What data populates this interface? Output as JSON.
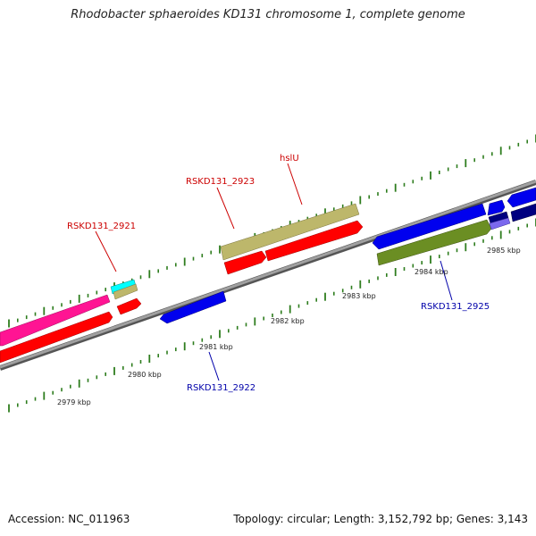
{
  "title": "Rhodobacter sphaeroides KD131 chromosome 1, complete genome",
  "footer": {
    "accession": "Accession: NC_011963",
    "summary": "Topology: circular; Length: 3,152,792 bp; Genes: 3,143"
  },
  "colors": {
    "backbone": "#8c8c8c",
    "tick": "#2e7d1e",
    "label_red": "#cc0000",
    "label_blue": "#0000aa",
    "red": "#ff0000",
    "blue": "#0000ee",
    "khaki": "#bdb76b",
    "pink": "#ff1493",
    "cyan": "#00ffff",
    "olive": "#6b8e23",
    "navy": "#000080",
    "slate": "#7b68ee"
  },
  "kbp_labels": [
    "2979 kbp",
    "2980 kbp",
    "2981 kbp",
    "2982 kbp",
    "2983 kbp",
    "2984 kbp",
    "2985 kbp"
  ],
  "gene_labels": {
    "g2921": "RSKD131_2921",
    "g2922": "RSKD131_2922",
    "g2923": "RSKD131_2923",
    "hslU": "hslU",
    "g2925": "RSKD131_2925"
  }
}
